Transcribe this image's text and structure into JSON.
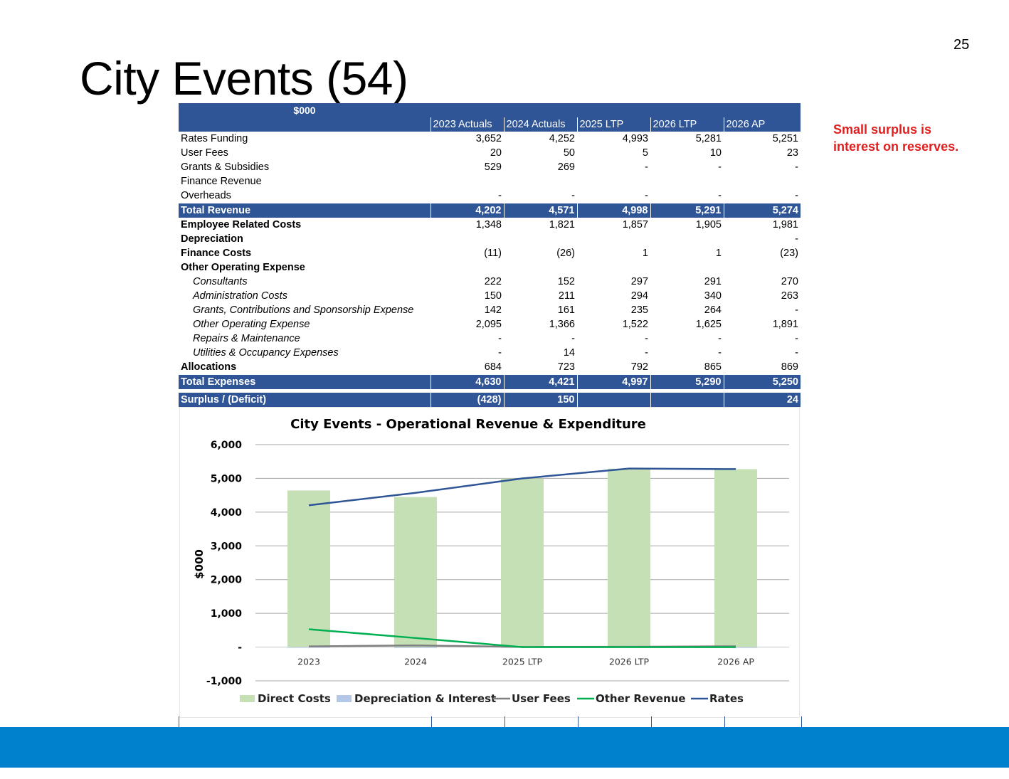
{
  "slide": {
    "page_number": "25",
    "title": "City Events (54)",
    "note": "Small surplus is interest on reserves."
  },
  "table": {
    "unit_label": "$000",
    "columns": [
      "2023 Actuals",
      "2024 Actuals",
      "2025 LTP",
      "2026 LTP",
      "2026 AP"
    ],
    "rows": [
      {
        "label": "Rates Funding",
        "style": "plain",
        "values": [
          "3,652",
          "4,252",
          "4,993",
          "5,281",
          "5,251"
        ]
      },
      {
        "label": "User Fees",
        "style": "plain",
        "values": [
          "20",
          "50",
          "5",
          "10",
          "23"
        ]
      },
      {
        "label": "Grants & Subsidies",
        "style": "plain",
        "values": [
          "529",
          "269",
          "-",
          "-",
          "-"
        ]
      },
      {
        "label": "Finance Revenue",
        "style": "plain",
        "values": [
          "",
          "",
          "",
          "",
          ""
        ]
      },
      {
        "label": "Overheads",
        "style": "plain",
        "values": [
          "-",
          "-",
          "-",
          "-",
          "-"
        ]
      },
      {
        "label": "Total Revenue",
        "style": "total",
        "values": [
          "4,202",
          "4,571",
          "4,998",
          "5,291",
          "5,274"
        ]
      },
      {
        "label": "Employee Related Costs",
        "style": "bold",
        "values": [
          "1,348",
          "1,821",
          "1,857",
          "1,905",
          "1,981"
        ]
      },
      {
        "label": "Depreciation",
        "style": "bold",
        "values": [
          "",
          "",
          "",
          "",
          "-"
        ]
      },
      {
        "label": "Finance Costs",
        "style": "bold",
        "values": [
          "(11)",
          "(26)",
          "1",
          "1",
          "(23)"
        ]
      },
      {
        "label": "Other Operating  Expense",
        "style": "bold",
        "values": [
          "",
          "",
          "",
          "",
          ""
        ]
      },
      {
        "label": "Consultants",
        "style": "sub",
        "values": [
          "222",
          "152",
          "297",
          "291",
          "270"
        ]
      },
      {
        "label": "Administration Costs",
        "style": "sub",
        "values": [
          "150",
          "211",
          "294",
          "340",
          "263"
        ]
      },
      {
        "label": "Grants, Contributions and Sponsorship Expense",
        "style": "sub",
        "values": [
          "142",
          "161",
          "235",
          "264",
          "-"
        ]
      },
      {
        "label": "Other Operating Expense",
        "style": "sub",
        "values": [
          "2,095",
          "1,366",
          "1,522",
          "1,625",
          "1,891"
        ]
      },
      {
        "label": "Repairs & Maintenance",
        "style": "sub",
        "values": [
          "-",
          "-",
          "-",
          "-",
          "-"
        ]
      },
      {
        "label": "Utilities & Occupancy Expenses",
        "style": "sub",
        "values": [
          "-",
          "14",
          "-",
          "-",
          "-"
        ]
      },
      {
        "label": "Allocations",
        "style": "bold",
        "values": [
          "684",
          "723",
          "792",
          "865",
          "869"
        ]
      },
      {
        "label": "Total Expenses",
        "style": "total",
        "values": [
          "4,630",
          "4,421",
          "4,997",
          "5,290",
          "5,250"
        ]
      }
    ],
    "surplus_row": {
      "label": "Surplus / (Deficit)",
      "values": [
        "(428)",
        "150",
        "",
        "",
        "24"
      ]
    }
  },
  "chart_data": {
    "type": "bar",
    "title": "City Events - Operational Revenue & Expenditure",
    "xlabel": "",
    "ylabel": "$000",
    "categories": [
      "2023",
      "2024",
      "2025 LTP",
      "2026 LTP",
      "2026 AP"
    ],
    "ylim": [
      -1000,
      6000
    ],
    "yticks": [
      -1000,
      0,
      1000,
      2000,
      3000,
      4000,
      5000,
      6000
    ],
    "ytick_labels": [
      "-1,000",
      "-",
      "1,000",
      "2,000",
      "3,000",
      "4,000",
      "5,000",
      "6,000"
    ],
    "grid": true,
    "legend_position": "bottom",
    "series": [
      {
        "name": "Direct Costs",
        "kind": "bar",
        "color": "#c5e0b4",
        "values": [
          4641,
          4447,
          4996,
          5289,
          5273
        ]
      },
      {
        "name": "Depreciation & Interest",
        "kind": "bar",
        "color": "#b4c7e7",
        "values": [
          -11,
          -26,
          1,
          1,
          -23
        ]
      },
      {
        "name": "User Fees",
        "kind": "line",
        "color": "#808080",
        "values": [
          20,
          50,
          5,
          10,
          23
        ]
      },
      {
        "name": "Other Revenue",
        "kind": "line",
        "color": "#00b050",
        "values": [
          529,
          269,
          0,
          0,
          0
        ]
      },
      {
        "name": "Rates",
        "kind": "line",
        "color": "#2f5597",
        "values": [
          4202,
          4571,
          4998,
          5291,
          5274
        ]
      }
    ]
  },
  "colors": {
    "table_header": "#2f5597",
    "footer_band": "#0081cd",
    "note_text": "#e02020"
  }
}
